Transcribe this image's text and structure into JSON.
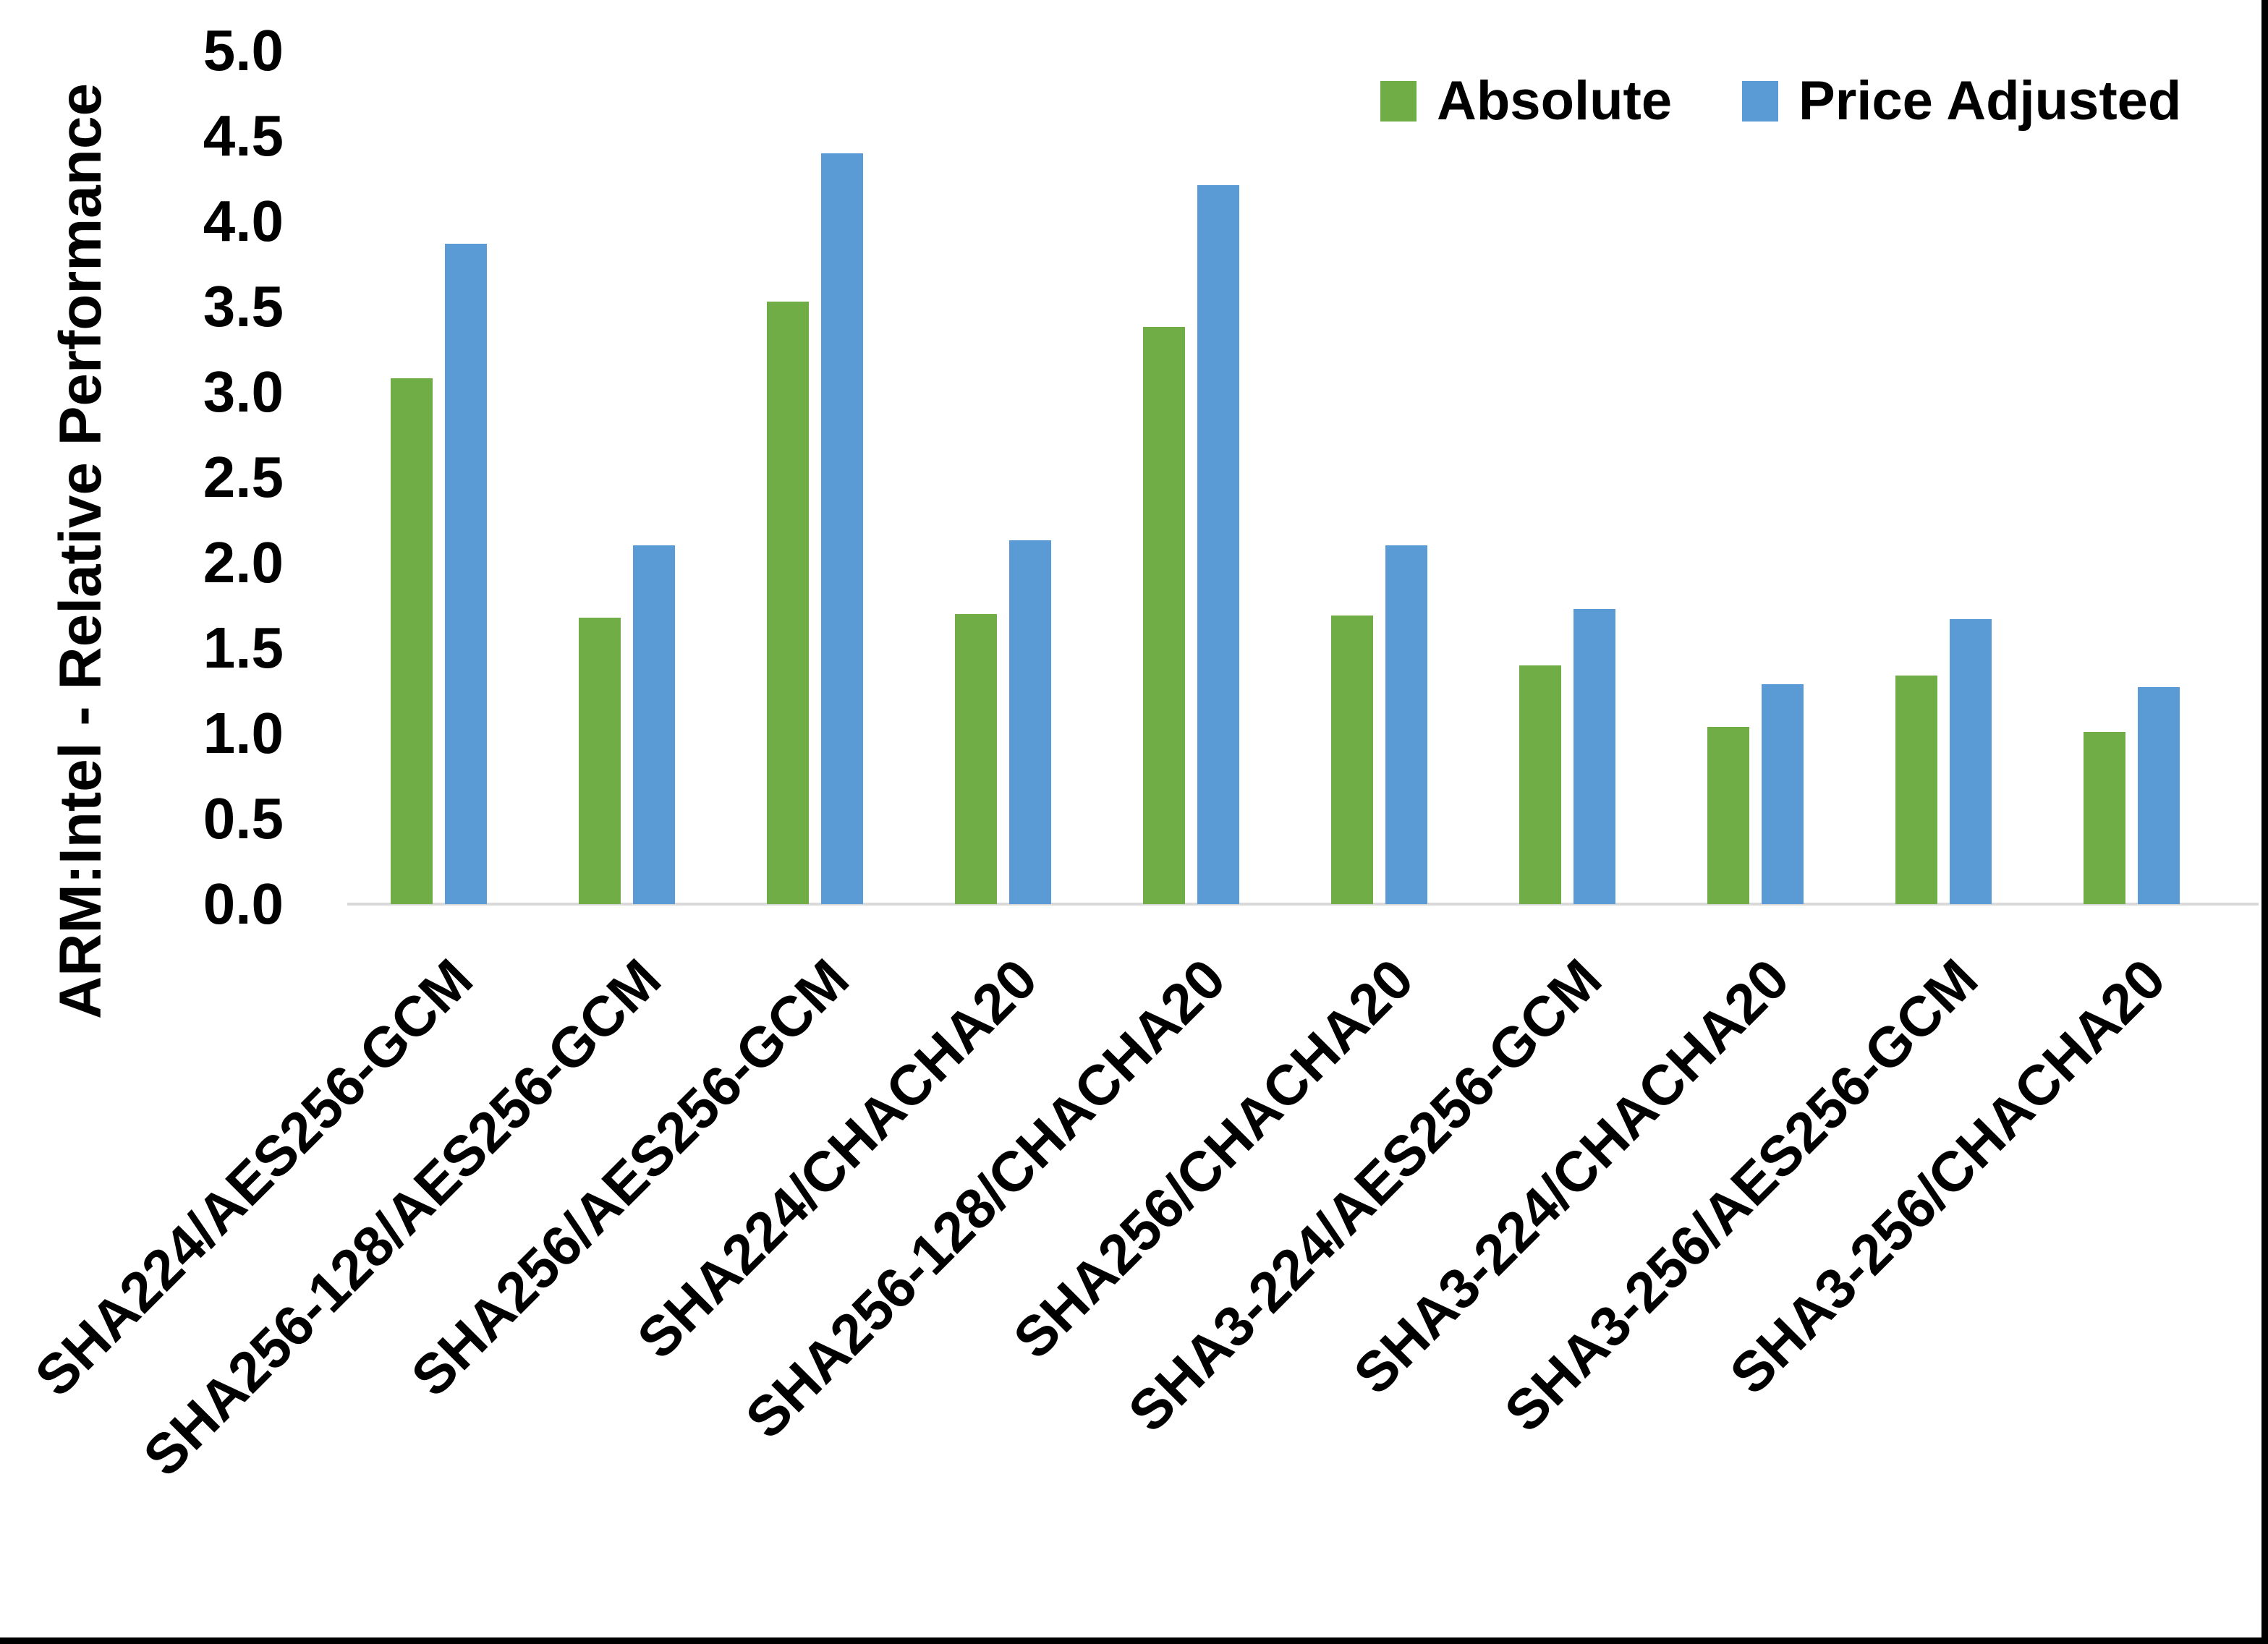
{
  "chart_data": {
    "type": "bar",
    "title": "",
    "ylabel": "ARM:Intel - Relative Performance",
    "xlabel": "",
    "ylim": [
      0,
      5
    ],
    "ytick_step": 0.5,
    "yticks_top_to_bottom": [
      "5.0",
      "4.5",
      "4.0",
      "3.5",
      "3.0",
      "2.5",
      "2.0",
      "1.5",
      "1.0",
      "0.5",
      "0.0"
    ],
    "grid": false,
    "legend_position": "top-right",
    "categories": [
      "SHA224/AES256-GCM",
      "SHA256-128/AES256-GCM",
      "SHA256/AES256-GCM",
      "SHA224/CHACHA20",
      "SHA256-128/CHACHA20",
      "SHA256/CHACHA20",
      "SHA3-224/AES256-GCM",
      "SHA3-224/CHACHA20",
      "SHA3-256/AES256-GCM",
      "SHA3-256/CHACHA20"
    ],
    "series": [
      {
        "name": "Absolute",
        "color": "#70AD47",
        "values": [
          3.08,
          1.68,
          3.53,
          1.7,
          3.38,
          1.69,
          1.4,
          1.04,
          1.34,
          1.01
        ]
      },
      {
        "name": "Price Adjusted",
        "color": "#5B9BD5",
        "values": [
          3.87,
          2.1,
          4.4,
          2.13,
          4.21,
          2.1,
          1.73,
          1.29,
          1.67,
          1.27
        ]
      }
    ]
  },
  "legend": {
    "items": [
      {
        "label": "Absolute",
        "color": "#70AD47"
      },
      {
        "label": "Price Adjusted",
        "color": "#5B9BD5"
      }
    ]
  },
  "axis": {
    "baseline_color": "#D9D9D9",
    "text_color": "#000000"
  },
  "frame": {
    "border_color": "#000000"
  }
}
